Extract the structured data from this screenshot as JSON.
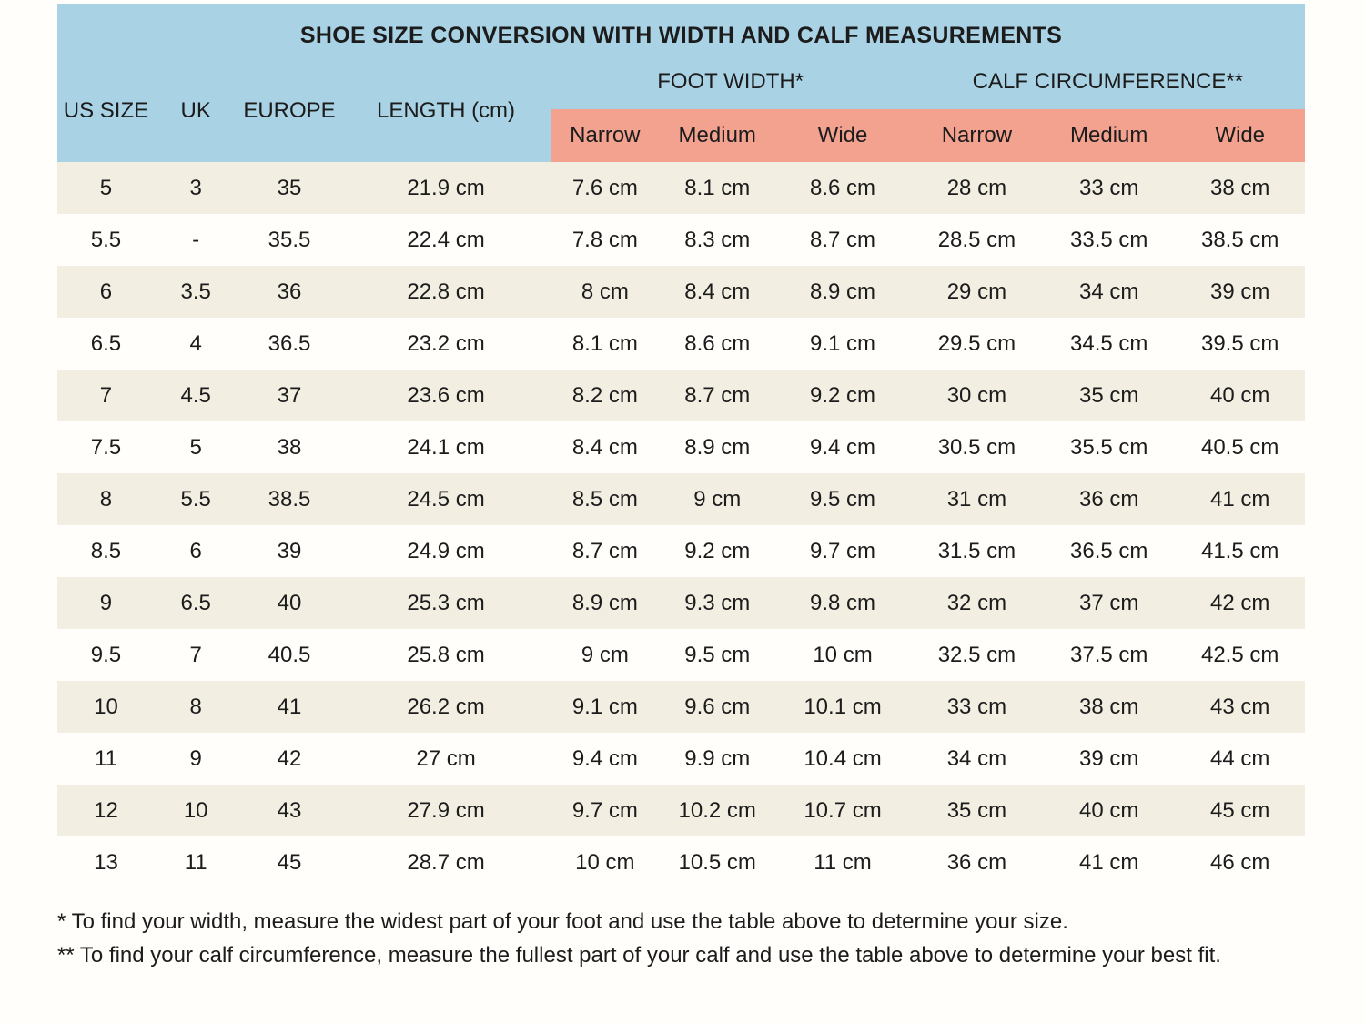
{
  "chart_data": {
    "type": "table",
    "title": "SHOE SIZE CONVERSION WITH WIDTH AND CALF MEASUREMENTS",
    "base_columns": [
      "US SIZE",
      "UK",
      "EUROPE",
      "LENGTH (cm)"
    ],
    "column_groups": [
      {
        "label": "FOOT WIDTH*",
        "sub_columns": [
          "Narrow",
          "Medium",
          "Wide"
        ]
      },
      {
        "label": "CALF CIRCUMFERENCE**",
        "sub_columns": [
          "Narrow",
          "Medium",
          "Wide"
        ]
      }
    ],
    "rows": [
      [
        "5",
        "3",
        "35",
        "21.9 cm",
        "7.6 cm",
        "8.1 cm",
        "8.6 cm",
        "28 cm",
        "33 cm",
        "38 cm"
      ],
      [
        "5.5",
        "-",
        "35.5",
        "22.4 cm",
        "7.8 cm",
        "8.3 cm",
        "8.7 cm",
        "28.5 cm",
        "33.5 cm",
        "38.5 cm"
      ],
      [
        "6",
        "3.5",
        "36",
        "22.8 cm",
        "8 cm",
        "8.4 cm",
        "8.9 cm",
        "29 cm",
        "34 cm",
        "39 cm"
      ],
      [
        "6.5",
        "4",
        "36.5",
        "23.2 cm",
        "8.1 cm",
        "8.6 cm",
        "9.1 cm",
        "29.5 cm",
        "34.5 cm",
        "39.5 cm"
      ],
      [
        "7",
        "4.5",
        "37",
        "23.6 cm",
        "8.2 cm",
        "8.7 cm",
        "9.2 cm",
        "30 cm",
        "35 cm",
        "40 cm"
      ],
      [
        "7.5",
        "5",
        "38",
        "24.1 cm",
        "8.4 cm",
        "8.9 cm",
        "9.4 cm",
        "30.5 cm",
        "35.5 cm",
        "40.5 cm"
      ],
      [
        "8",
        "5.5",
        "38.5",
        "24.5 cm",
        "8.5 cm",
        "9 cm",
        "9.5 cm",
        "31 cm",
        "36 cm",
        "41 cm"
      ],
      [
        "8.5",
        "6",
        "39",
        "24.9 cm",
        "8.7 cm",
        "9.2 cm",
        "9.7 cm",
        "31.5 cm",
        "36.5 cm",
        "41.5 cm"
      ],
      [
        "9",
        "6.5",
        "40",
        "25.3 cm",
        "8.9 cm",
        "9.3 cm",
        "9.8 cm",
        "32 cm",
        "37 cm",
        "42 cm"
      ],
      [
        "9.5",
        "7",
        "40.5",
        "25.8 cm",
        "9 cm",
        "9.5 cm",
        "10 cm",
        "32.5 cm",
        "37.5 cm",
        "42.5 cm"
      ],
      [
        "10",
        "8",
        "41",
        "26.2 cm",
        "9.1 cm",
        "9.6 cm",
        "10.1 cm",
        "33 cm",
        "38 cm",
        "43 cm"
      ],
      [
        "11",
        "9",
        "42",
        "27 cm",
        "9.4 cm",
        "9.9 cm",
        "10.4 cm",
        "34 cm",
        "39 cm",
        "44 cm"
      ],
      [
        "12",
        "10",
        "43",
        "27.9 cm",
        "9.7 cm",
        "10.2 cm",
        "10.7 cm",
        "35 cm",
        "40 cm",
        "45 cm"
      ],
      [
        "13",
        "11",
        "45",
        "28.7 cm",
        "10 cm",
        "10.5 cm",
        "11 cm",
        "36 cm",
        "41 cm",
        "46 cm"
      ]
    ],
    "footnotes": [
      "* To find your width, measure the widest part of your foot and use the table above to determine your size.",
      "** To find your calf circumference, measure the fullest part of your calf and use the table above to determine your best fit."
    ]
  },
  "colors": {
    "header_blue": "#a9d3e5",
    "subheader_salmon": "#f2a28f",
    "row_cream": "#f2eee2",
    "row_plain": "#fffefb",
    "page_bg": "#fffefb",
    "text": "#1c1c1c"
  }
}
